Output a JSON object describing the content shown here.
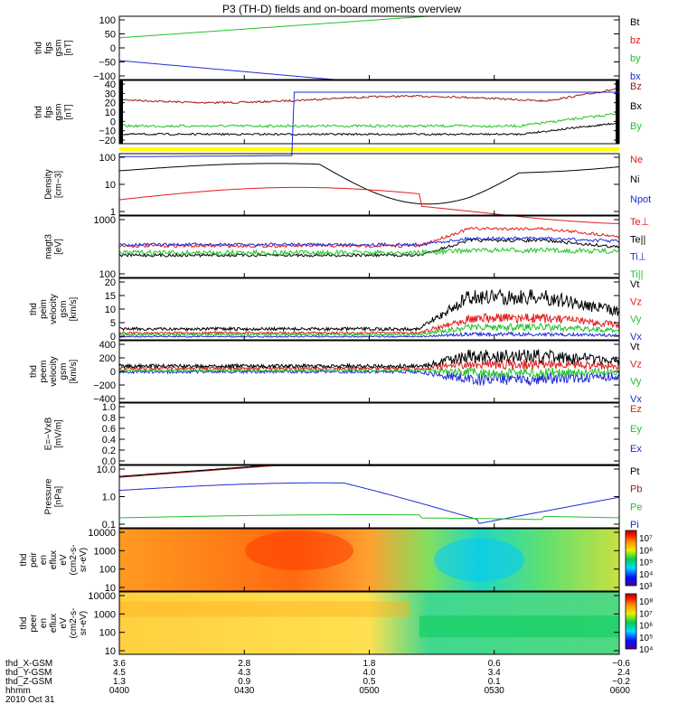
{
  "title": "P3 (TH-D) fields and on-board moments overview",
  "colors": {
    "black": "#000000",
    "red": "#e41a1c",
    "green": "#22c22a",
    "blue": "#1f2bd4",
    "dkred": "#9b1b1b",
    "yellow": "#ffff00"
  },
  "chart_data": [
    {
      "type": "line",
      "ylabel": [
        "thd",
        "fgs",
        "gsm",
        "[nT]"
      ],
      "ytick_labels": [
        "100",
        "50",
        "0",
        "−50",
        "−100"
      ],
      "ylim": [
        -100,
        100
      ],
      "legend": [
        {
          "name": "Bt",
          "color": "black"
        },
        {
          "name": "bz",
          "color": "red"
        },
        {
          "name": "by",
          "color": "green"
        },
        {
          "name": "bx",
          "color": "blue"
        }
      ]
    },
    {
      "type": "line",
      "ylabel": [
        "thd",
        "fgs",
        "gsm",
        "[nT]"
      ],
      "ytick_labels": [
        "40",
        "30",
        "20",
        "10",
        "0",
        "−10",
        "−20"
      ],
      "ylim": [
        -20,
        40
      ],
      "legend": [
        {
          "name": "Bz",
          "color": "dkred"
        },
        {
          "name": "Bx",
          "color": "black"
        },
        {
          "name": "By",
          "color": "green"
        }
      ]
    },
    {
      "type": "bar",
      "note": "yellow flag bar"
    },
    {
      "type": "line",
      "ylabel": [
        "Density",
        "[cm−3]"
      ],
      "ytick_labels": [
        "100",
        "10",
        "1"
      ],
      "yscale": "log",
      "legend": [
        {
          "name": "Ne",
          "color": "red"
        },
        {
          "name": "Ni",
          "color": "black"
        },
        {
          "name": "Npot",
          "color": "blue"
        }
      ]
    },
    {
      "type": "line",
      "ylabel": [
        "magt3",
        "[eV]"
      ],
      "ytick_labels": [
        "1000",
        "100"
      ],
      "yscale": "log",
      "legend": [
        {
          "name": "Te⊥",
          "color": "red"
        },
        {
          "name": "Te||",
          "color": "black"
        },
        {
          "name": "Ti⊥",
          "color": "blue"
        },
        {
          "name": "Ti||",
          "color": "green"
        }
      ]
    },
    {
      "type": "line",
      "ylabel": [
        "thd",
        "peim",
        "velocity",
        "gsm",
        "[km/s]"
      ],
      "ytick_labels": [
        "20",
        "15",
        "10",
        "5",
        "0"
      ],
      "ylim": [
        0,
        20
      ],
      "legend": [
        {
          "name": "Vt",
          "color": "black"
        },
        {
          "name": "Vz",
          "color": "red"
        },
        {
          "name": "Vy",
          "color": "green"
        },
        {
          "name": "Vx",
          "color": "blue"
        }
      ]
    },
    {
      "type": "line",
      "ylabel": [
        "thd",
        "peem",
        "velocity",
        "gsm",
        "[km/s]"
      ],
      "ytick_labels": [
        "400",
        "200",
        "0",
        "−200",
        "−400"
      ],
      "ylim": [
        -400,
        400
      ],
      "legend": [
        {
          "name": "Vt",
          "color": "black"
        },
        {
          "name": "Vz",
          "color": "red"
        },
        {
          "name": "Vy",
          "color": "green"
        },
        {
          "name": "Vx",
          "color": "blue"
        }
      ]
    },
    {
      "type": "line",
      "ylabel": [
        "E=−VxB",
        "[mV/m]"
      ],
      "ytick_labels": [
        "1.0",
        "0.8",
        "0.6",
        "0.4",
        "0.2",
        "0.0"
      ],
      "ylim": [
        0,
        1
      ],
      "legend": [
        {
          "name": "Ez",
          "color": "red"
        },
        {
          "name": "Ey",
          "color": "green"
        },
        {
          "name": "Ex",
          "color": "blue"
        }
      ]
    },
    {
      "type": "line",
      "ylabel": [
        "Pressure",
        "[nPa]"
      ],
      "ytick_labels": [
        "10.0",
        "1.0",
        "0.1"
      ],
      "yscale": "log",
      "legend": [
        {
          "name": "Pt",
          "color": "black"
        },
        {
          "name": "Pb",
          "color": "dkred"
        },
        {
          "name": "Pe",
          "color": "green"
        },
        {
          "name": "Pi",
          "color": "blue"
        }
      ]
    },
    {
      "type": "heatmap",
      "ylabel": [
        "thd",
        "peir",
        "en",
        "eflux",
        "eV",
        "(cm2-s-",
        "sr-eV)"
      ],
      "ytick_labels": [
        "10000",
        "1000",
        "100",
        "10"
      ],
      "yscale": "log",
      "colorbar_labels": [
        "10⁷",
        "10⁶",
        "10⁵",
        "10⁴",
        "10³"
      ]
    },
    {
      "type": "heatmap",
      "ylabel": [
        "thd",
        "peer",
        "en",
        "eflux",
        "eV",
        "(cm2-s-",
        "sr-eV)"
      ],
      "ytick_labels": [
        "10000",
        "1000",
        "100",
        "10"
      ],
      "yscale": "log",
      "colorbar_labels": [
        "10⁸",
        "10⁷",
        "10⁶",
        "10⁵",
        "10⁴"
      ]
    }
  ],
  "x_axis": {
    "row_labels": [
      "thd_X-GSM",
      "thd_Y-GSM",
      "thd_Z-GSM",
      "hhmm",
      "2010 Oct 31"
    ],
    "ticks": [
      {
        "x": 3.6,
        "y": 4.5,
        "z": 1.3,
        "t": "0400"
      },
      {
        "x": 2.8,
        "y": 4.3,
        "z": 0.9,
        "t": "0430"
      },
      {
        "x": 1.8,
        "y": 4.0,
        "z": 0.5,
        "t": "0500"
      },
      {
        "x": 0.6,
        "y": 3.4,
        "z": 0.1,
        "t": "0530"
      },
      {
        "x": -0.6,
        "y": 2.4,
        "z": -0.2,
        "t": "0600"
      }
    ]
  }
}
